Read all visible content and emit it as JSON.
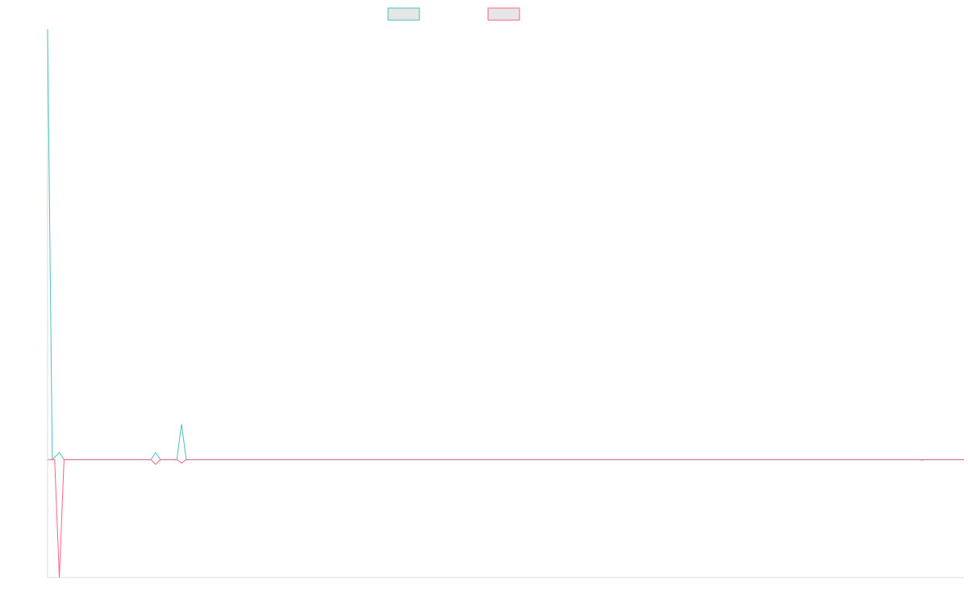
{
  "chart_data": {
    "type": "line",
    "x": [
      0,
      1,
      2,
      3,
      4,
      5,
      6,
      7,
      8,
      9,
      10,
      11,
      12,
      13,
      14,
      15,
      16,
      17,
      18,
      19,
      20,
      21,
      22,
      23,
      24,
      25,
      26,
      27,
      28,
      29,
      30,
      31,
      32,
      33,
      34,
      35,
      36,
      37,
      38,
      39,
      40,
      41,
      42,
      43,
      44,
      45,
      46,
      47,
      48,
      49,
      50,
      51,
      52,
      53,
      54,
      55,
      56,
      57,
      58,
      59,
      60,
      61,
      62,
      63,
      64,
      65,
      66,
      67,
      68,
      69,
      70,
      71,
      72,
      73,
      74,
      75,
      76,
      77,
      78,
      79,
      80,
      81,
      82,
      83,
      84,
      85,
      86,
      87,
      88,
      89,
      90,
      91,
      92,
      93,
      94,
      95,
      96,
      97,
      98,
      99,
      100,
      101,
      102,
      103,
      104,
      105,
      106,
      107,
      108,
      109,
      110,
      111,
      112,
      113,
      114,
      115,
      116,
      117,
      118,
      119,
      120,
      121,
      122,
      123,
      124,
      125,
      126,
      127,
      128,
      129,
      130,
      131,
      132,
      133,
      134,
      135,
      136,
      137,
      138,
      139,
      140,
      141,
      142,
      143,
      144,
      145,
      146,
      147,
      148,
      149,
      150,
      151,
      152,
      153,
      154,
      155,
      156,
      157,
      158,
      159,
      160,
      161,
      162,
      163,
      164,
      165,
      166,
      167,
      168,
      169,
      170,
      171,
      172,
      173,
      174,
      175,
      176,
      177,
      178,
      179,
      180,
      181,
      182,
      183,
      184,
      185,
      186,
      187,
      188,
      189,
      190,
      191,
      192,
      193,
      194,
      195,
      196,
      197,
      198,
      199,
      200,
      201,
      202,
      203,
      204,
      205,
      206,
      207,
      208,
      209,
      210,
      211,
      212,
      213,
      214,
      215,
      216,
      217,
      218,
      219,
      220,
      221,
      222,
      223,
      224,
      225,
      226,
      227,
      228,
      229,
      230,
      231,
      232,
      233,
      234,
      235,
      236,
      237,
      238,
      239,
      240,
      241,
      242,
      243,
      244,
      245,
      246,
      247,
      248,
      249,
      250,
      251,
      252,
      253,
      254,
      255,
      256,
      257,
      258,
      259,
      260,
      261,
      262,
      263,
      264,
      265,
      266,
      267,
      268,
      269,
      270,
      271,
      272,
      273,
      274,
      275,
      276,
      277,
      278,
      279,
      280,
      281,
      282,
      283,
      284,
      285,
      286,
      287,
      288,
      289,
      290,
      291,
      292,
      293,
      294,
      295,
      296,
      297,
      298,
      299,
      300,
      301,
      302,
      303,
      304,
      305,
      306,
      307,
      308,
      309,
      310,
      311,
      312,
      313,
      314,
      315,
      316,
      317,
      318,
      319,
      320,
      321,
      322,
      323,
      324,
      325,
      326,
      327,
      328,
      329,
      330,
      331,
      332,
      333,
      334,
      335,
      336,
      337,
      338,
      339,
      340,
      341,
      342,
      343,
      344,
      345,
      346,
      347,
      348,
      349,
      350,
      351,
      352,
      353,
      354,
      355,
      356,
      357,
      358,
      359,
      360,
      361,
      362,
      363,
      364,
      365,
      366,
      367,
      368,
      369,
      370,
      371,
      372,
      373,
      374,
      375,
      376,
      377,
      378,
      379,
      380,
      381,
      382,
      383,
      384,
      385,
      386,
      387,
      388,
      389,
      390
    ],
    "series": [
      {
        "color": "#4bc0c0",
        "points": [
          [
            0,
            730
          ],
          [
            2,
            0
          ],
          [
            5,
            12
          ],
          [
            7,
            0
          ],
          [
            16,
            0
          ],
          [
            18,
            0
          ],
          [
            20,
            0
          ],
          [
            44,
            0
          ],
          [
            46,
            12
          ],
          [
            48,
            0
          ],
          [
            55,
            0
          ],
          [
            57,
            60
          ],
          [
            59,
            0
          ],
          [
            390,
            0
          ]
        ]
      },
      {
        "color": "#ff6384",
        "points": [
          [
            0,
            0
          ],
          [
            2,
            0
          ],
          [
            3,
            0
          ],
          [
            5,
            -200
          ],
          [
            7,
            0
          ],
          [
            16,
            0
          ],
          [
            18,
            0
          ],
          [
            20,
            0
          ],
          [
            44,
            0
          ],
          [
            46,
            -8
          ],
          [
            48,
            0
          ],
          [
            55,
            0
          ],
          [
            57,
            -6
          ],
          [
            59,
            0
          ],
          [
            371,
            0
          ],
          [
            372,
            -1
          ],
          [
            373,
            0
          ],
          [
            390,
            0
          ]
        ]
      }
    ],
    "xlim": [
      0,
      390
    ],
    "ylim": [
      -200,
      730
    ],
    "grid": false,
    "legend_position": "top"
  }
}
